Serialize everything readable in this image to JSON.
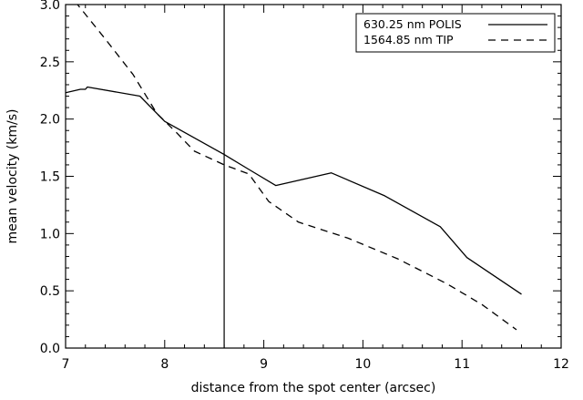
{
  "chart_data": {
    "type": "line",
    "xlabel": "distance from the spot center (arcsec)",
    "ylabel": "mean velocity (km/s)",
    "xlim": [
      7,
      12
    ],
    "ylim": [
      0.0,
      3.0
    ],
    "x_ticks": [
      7,
      8,
      9,
      10,
      11,
      12
    ],
    "x_tick_labels": [
      "7",
      "8",
      "9",
      "10",
      "11",
      "12"
    ],
    "y_ticks": [
      0.0,
      0.5,
      1.0,
      1.5,
      2.0,
      2.5,
      3.0
    ],
    "y_tick_labels": [
      "0.0",
      "0.5",
      "1.0",
      "1.5",
      "2.0",
      "2.5",
      "3.0"
    ],
    "vertical_line_x": 8.6,
    "legend": {
      "placement": "top-right",
      "entries": [
        {
          "label": "630.25 nm POLIS",
          "style": "solid"
        },
        {
          "label": "1564.85 nm  TIP",
          "style": "dashed"
        }
      ]
    },
    "series": [
      {
        "name": "630.25 nm POLIS",
        "style": "solid",
        "x": [
          7.0,
          7.15,
          7.2,
          7.22,
          7.75,
          8.0,
          8.6,
          8.85,
          9.12,
          9.68,
          10.22,
          10.78,
          11.05,
          11.6
        ],
        "y": [
          2.23,
          2.26,
          2.26,
          2.28,
          2.2,
          1.98,
          1.69,
          1.56,
          1.42,
          1.53,
          1.33,
          1.06,
          0.79,
          0.47
        ]
      },
      {
        "name": "1564.85 nm  TIP",
        "style": "dashed",
        "x": [
          7.0,
          7.12,
          7.4,
          7.68,
          7.92,
          8.12,
          8.3,
          8.6,
          8.85,
          9.05,
          9.35,
          9.85,
          10.35,
          10.85,
          11.2,
          11.55
        ],
        "y": [
          3.1,
          3.0,
          2.7,
          2.39,
          2.05,
          1.88,
          1.72,
          1.6,
          1.52,
          1.28,
          1.1,
          0.96,
          0.78,
          0.56,
          0.38,
          0.16
        ]
      }
    ]
  }
}
